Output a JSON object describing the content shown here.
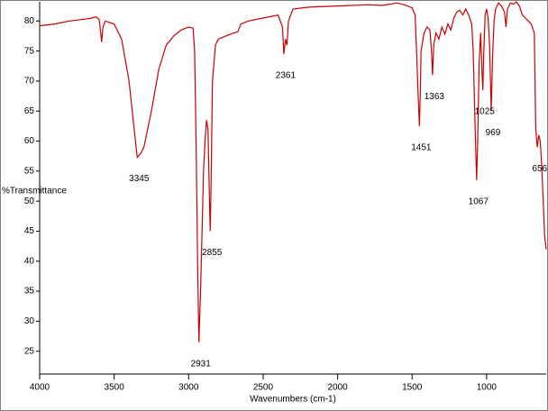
{
  "chart_data": {
    "type": "line",
    "xlabel": "Wavenumbers (cm-1)",
    "ylabel": "%Transmittance",
    "xlim": [
      4000,
      600
    ],
    "ylim": [
      21.2,
      83.2
    ],
    "xticks": [
      4000,
      3500,
      3000,
      2500,
      2000,
      1500,
      1000
    ],
    "yticks": [
      25,
      30,
      35,
      40,
      45,
      50,
      55,
      60,
      65,
      70,
      75,
      80
    ],
    "series": [
      {
        "color": "#cc0000",
        "x": [
          4000,
          3900,
          3800,
          3700,
          3650,
          3620,
          3600,
          3590,
          3584,
          3575,
          3560,
          3500,
          3450,
          3400,
          3370,
          3345,
          3320,
          3300,
          3250,
          3200,
          3150,
          3100,
          3050,
          3000,
          2970,
          2960,
          2950,
          2940,
          2931,
          2920,
          2900,
          2890,
          2880,
          2870,
          2860,
          2855,
          2850,
          2840,
          2820,
          2800,
          2750,
          2700,
          2670,
          2650,
          2600,
          2500,
          2400,
          2370,
          2361,
          2350,
          2340,
          2330,
          2300,
          2200,
          2000,
          1800,
          1700,
          1600,
          1550,
          1500,
          1480,
          1470,
          1460,
          1451,
          1445,
          1440,
          1420,
          1400,
          1380,
          1370,
          1363,
          1355,
          1340,
          1320,
          1300,
          1280,
          1260,
          1240,
          1220,
          1200,
          1180,
          1160,
          1140,
          1120,
          1100,
          1090,
          1080,
          1070,
          1067,
          1060,
          1050,
          1040,
          1030,
          1025,
          1020,
          1010,
          1000,
          990,
          980,
          969,
          960,
          950,
          940,
          920,
          900,
          880,
          870,
          860,
          840,
          820,
          800,
          780,
          760,
          740,
          720,
          700,
          680,
          670,
          660,
          650,
          640,
          630,
          620,
          610,
          600
        ],
        "values": [
          79.2,
          79.5,
          80,
          80.3,
          80.5,
          80.7,
          80.2,
          78,
          76.5,
          79,
          80,
          79.5,
          77,
          70,
          63,
          57.3,
          58,
          59,
          65,
          72,
          76,
          77.5,
          78.5,
          79,
          78.8,
          75,
          60,
          40,
          26.5,
          35,
          55,
          60,
          63.5,
          62,
          50,
          45,
          52,
          70,
          76,
          77,
          77.5,
          78,
          78.2,
          79.5,
          80,
          80.5,
          81,
          79,
          74.5,
          77,
          76,
          80,
          82,
          82.3,
          82.5,
          82.7,
          82.6,
          83,
          82.7,
          82.2,
          81,
          75,
          68,
          62.5,
          68,
          75,
          78,
          79,
          78.5,
          75,
          71,
          76,
          78,
          77,
          79,
          77.8,
          79.5,
          78.5,
          80.5,
          81.5,
          81.8,
          81,
          82,
          81,
          79.5,
          75,
          65,
          56,
          53.5,
          60,
          73,
          78,
          71,
          68.5,
          74,
          81,
          82,
          80.5,
          76,
          65,
          74,
          80,
          82,
          83,
          82.5,
          81.5,
          79,
          82,
          83,
          82.8,
          83.2,
          82.5,
          81,
          80.5,
          80,
          79.5,
          78,
          62,
          59,
          61,
          60,
          56,
          50,
          44,
          42
        ]
      }
    ],
    "annotations": [
      {
        "label": "3345",
        "x": 3345
      },
      {
        "label": "2931",
        "x": 2931
      },
      {
        "label": "2855",
        "x": 2855
      },
      {
        "label": "2361",
        "x": 2361
      },
      {
        "label": "1451",
        "x": 1451
      },
      {
        "label": "1363",
        "x": 1363
      },
      {
        "label": "1067",
        "x": 1067
      },
      {
        "label": "1025",
        "x": 1025
      },
      {
        "label": "969",
        "x": 969
      },
      {
        "label": "656",
        "x": 656
      }
    ]
  }
}
